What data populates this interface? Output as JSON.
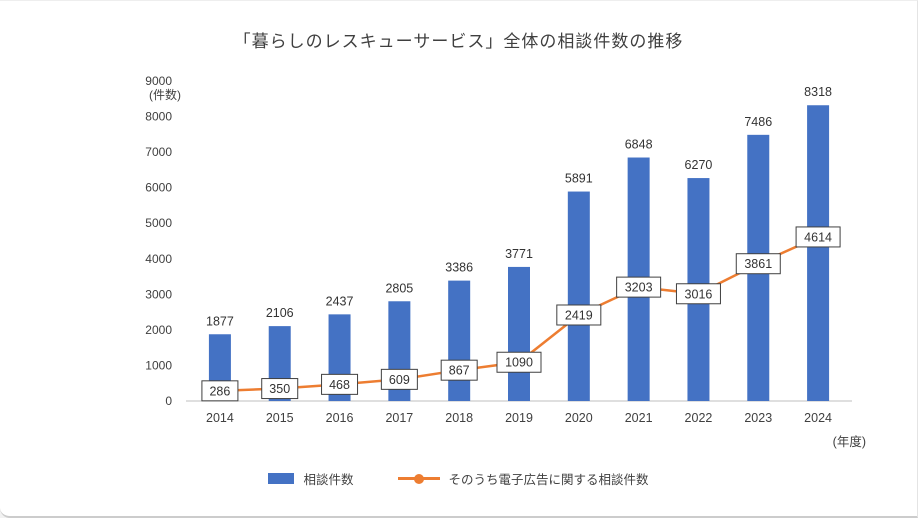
{
  "title": "「暮らしのレスキューサービス」全体の相談件数の推移",
  "legend": {
    "bars": "相談件数",
    "line": "そのうち電子広告に関する相談件数"
  },
  "colors": {
    "bar": "#4472C4",
    "line": "#ED7D31",
    "text": "#404040",
    "axis": "#BFBFBF",
    "box_border": "#404040",
    "box_fill": "#FFFFFF"
  },
  "chart_data": {
    "type": "bar",
    "subtype": "bar+line combo",
    "title": "「暮らしのレスキューサービス」全体の相談件数の推移",
    "categories": [
      "2014",
      "2015",
      "2016",
      "2017",
      "2018",
      "2019",
      "2020",
      "2021",
      "2022",
      "2023",
      "2024"
    ],
    "series": [
      {
        "name": "相談件数",
        "type": "bar",
        "color": "#4472C4",
        "values": [
          1877,
          2106,
          2437,
          2805,
          3386,
          3771,
          5891,
          6848,
          6270,
          7486,
          8318
        ]
      },
      {
        "name": "そのうち電子広告に関する相談件数",
        "type": "line",
        "color": "#ED7D31",
        "values": [
          286,
          350,
          468,
          609,
          867,
          1090,
          2419,
          3203,
          3016,
          3861,
          4614
        ]
      }
    ],
    "xlabel": "(年度)",
    "ylabel": "(件数)",
    "ylim": [
      0,
      9000
    ],
    "ytick_step": 1000,
    "grid": false,
    "legend_position": "bottom",
    "data_labels": "bar labels plain above bars; line labels in white boxes with dark border centered on points"
  }
}
